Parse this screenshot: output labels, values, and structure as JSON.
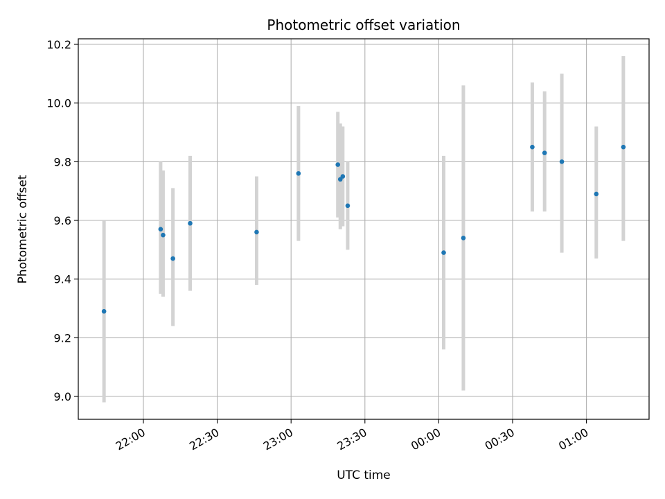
{
  "chart_data": {
    "type": "scatter",
    "title": "Photometric offset variation",
    "xlabel": "UTC time",
    "ylabel": "Photometric offset",
    "x_ticks": [
      "22:00",
      "22:30",
      "23:00",
      "23:30",
      "00:00",
      "00:30",
      "01:00"
    ],
    "y_ticks": [
      "9.0",
      "9.2",
      "9.4",
      "9.6",
      "9.8",
      "10.0",
      "10.2"
    ],
    "ylim": [
      8.92,
      10.22
    ],
    "grid": true,
    "point_color": "#1f77b4",
    "errorbar_color": "#d3d3d3",
    "points": [
      {
        "time": "21:44",
        "value": 9.29,
        "low": 8.98,
        "high": 9.6
      },
      {
        "time": "22:07",
        "value": 9.57,
        "low": 9.35,
        "high": 9.8
      },
      {
        "time": "22:08",
        "value": 9.55,
        "low": 9.34,
        "high": 9.77
      },
      {
        "time": "22:12",
        "value": 9.47,
        "low": 9.24,
        "high": 9.71
      },
      {
        "time": "22:19",
        "value": 9.59,
        "low": 9.36,
        "high": 9.82
      },
      {
        "time": "22:46",
        "value": 9.56,
        "low": 9.38,
        "high": 9.75
      },
      {
        "time": "23:03",
        "value": 9.76,
        "low": 9.53,
        "high": 9.99
      },
      {
        "time": "23:19",
        "value": 9.79,
        "low": 9.61,
        "high": 9.97
      },
      {
        "time": "23:20",
        "value": 9.74,
        "low": 9.57,
        "high": 9.93
      },
      {
        "time": "23:21",
        "value": 9.75,
        "low": 9.58,
        "high": 9.92
      },
      {
        "time": "23:23",
        "value": 9.65,
        "low": 9.5,
        "high": 9.8
      },
      {
        "time": "00:02",
        "value": 9.49,
        "low": 9.16,
        "high": 9.82
      },
      {
        "time": "00:10",
        "value": 9.54,
        "low": 9.02,
        "high": 10.06
      },
      {
        "time": "00:38",
        "value": 9.85,
        "low": 9.63,
        "high": 10.07
      },
      {
        "time": "00:43",
        "value": 9.83,
        "low": 9.63,
        "high": 10.04
      },
      {
        "time": "00:50",
        "value": 9.8,
        "low": 9.49,
        "high": 10.1
      },
      {
        "time": "01:04",
        "value": 9.69,
        "low": 9.47,
        "high": 9.92
      },
      {
        "time": "01:15",
        "value": 9.85,
        "low": 9.53,
        "high": 10.16
      }
    ]
  }
}
